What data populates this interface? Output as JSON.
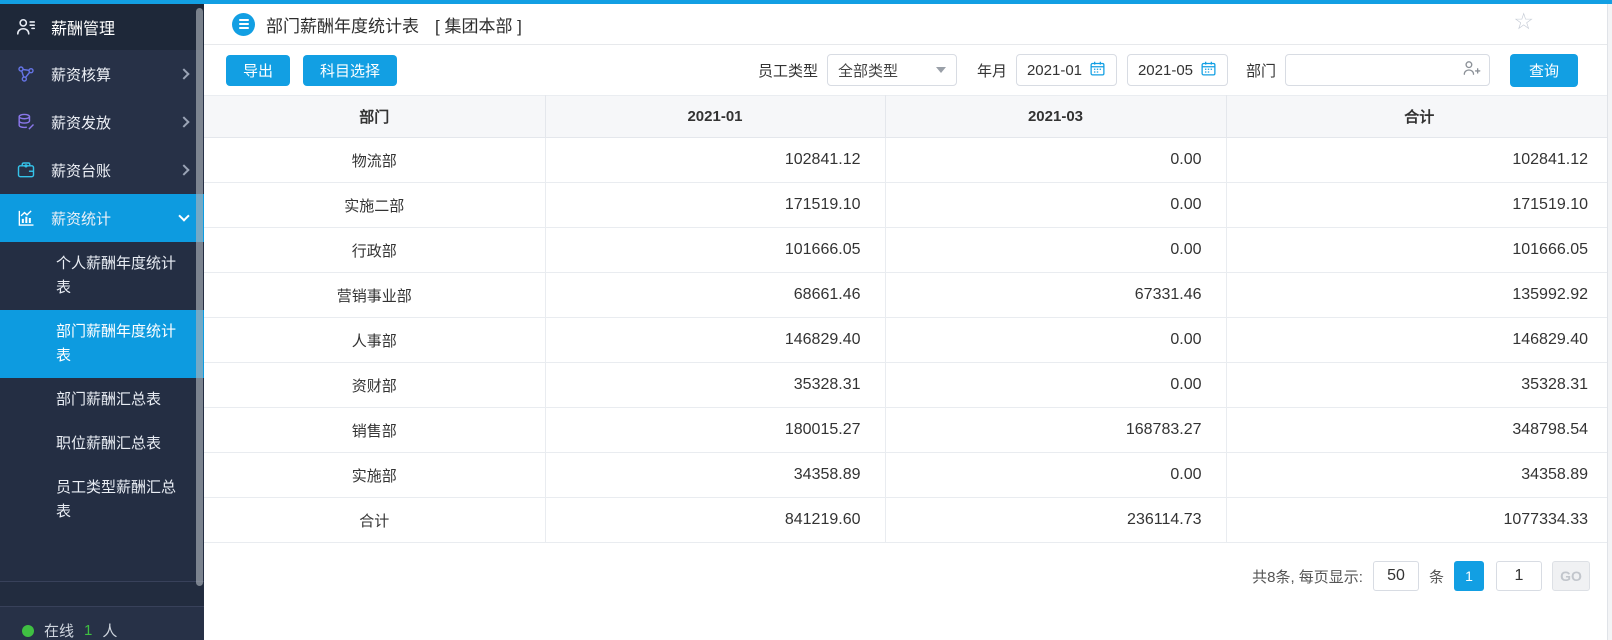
{
  "theme": {
    "accent": "#129fe3",
    "sidebar_active": "#0d9be0",
    "online_green": "#3fbf42"
  },
  "sidebar": {
    "title": "薪酬管理",
    "items": [
      {
        "label": "薪资核算",
        "icon": "share-nodes-icon"
      },
      {
        "label": "薪资发放",
        "icon": "coins-icon"
      },
      {
        "label": "薪资台账",
        "icon": "wallet-icon"
      },
      {
        "label": "薪资统计",
        "icon": "chart-icon",
        "active": true,
        "expanded": true
      }
    ],
    "submenu": [
      {
        "label": "个人薪酬年度统计表",
        "active": false
      },
      {
        "label": "部门薪酬年度统计表",
        "active": true
      },
      {
        "label": "部门薪酬汇总表",
        "active": false
      },
      {
        "label": "职位薪酬汇总表",
        "active": false
      },
      {
        "label": "员工类型薪酬汇总表",
        "active": false
      }
    ],
    "online": {
      "prefix": "在线",
      "count": "1",
      "suffix": "人"
    }
  },
  "header": {
    "title": "部门薪酬年度统计表",
    "scope": "[ 集团本部 ]"
  },
  "toolbar": {
    "export_label": "导出",
    "subject_select_label": "科目选择",
    "employee_type_label": "员工类型",
    "employee_type_value": "全部类型",
    "year_month_label": "年月",
    "date_from": "2021-01",
    "date_to": "2021-05",
    "department_label": "部门",
    "department_value": "",
    "query_label": "查询"
  },
  "table": {
    "columns": [
      "部门",
      "2021-01",
      "2021-03",
      "合计"
    ],
    "rows": [
      [
        "物流部",
        "102841.12",
        "0.00",
        "102841.12"
      ],
      [
        "实施二部",
        "171519.10",
        "0.00",
        "171519.10"
      ],
      [
        "行政部",
        "101666.05",
        "0.00",
        "101666.05"
      ],
      [
        "营销事业部",
        "68661.46",
        "67331.46",
        "135992.92"
      ],
      [
        "人事部",
        "146829.40",
        "0.00",
        "146829.40"
      ],
      [
        "资财部",
        "35328.31",
        "0.00",
        "35328.31"
      ],
      [
        "销售部",
        "180015.27",
        "168783.27",
        "348798.54"
      ],
      [
        "实施部",
        "34358.89",
        "0.00",
        "34358.89"
      ],
      [
        "合计",
        "841219.60",
        "236114.73",
        "1077334.33"
      ]
    ]
  },
  "pagination": {
    "summary": "共8条, 每页显示:",
    "page_size": "50",
    "unit": "条",
    "current_page": "1",
    "goto_value": "1",
    "go_label": "GO"
  }
}
